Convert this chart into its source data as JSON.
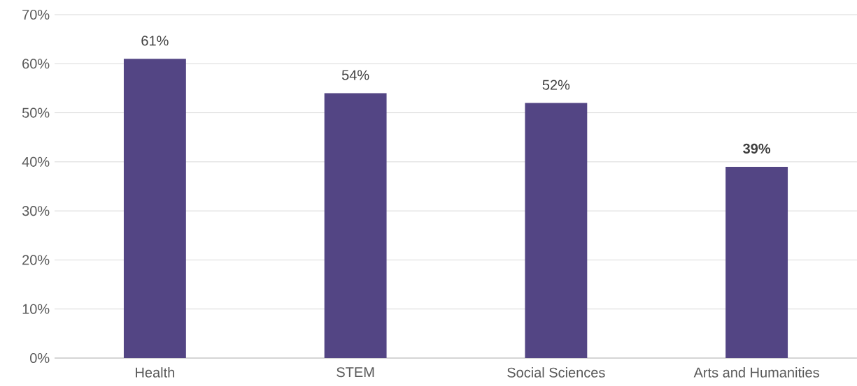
{
  "chart_data": {
    "type": "bar",
    "categories": [
      "Health",
      "STEM",
      "Social Sciences",
      "Arts and Humanities"
    ],
    "values": [
      61,
      54,
      52,
      39
    ],
    "value_labels": [
      "61%",
      "54%",
      "52%",
      "**39%**"
    ],
    "color": "#534584",
    "ylim": [
      0,
      70
    ],
    "yticks": [
      {
        "value": 0,
        "label": "0%"
      },
      {
        "value": 10,
        "label": "10%"
      },
      {
        "value": 20,
        "label": "20%"
      },
      {
        "value": 30,
        "label": "30%"
      },
      {
        "value": 40,
        "label": "40%"
      },
      {
        "value": 50,
        "label": "50%"
      },
      {
        "value": 60,
        "label": "60%"
      },
      {
        "value": 70,
        "label": "70%"
      }
    ],
    "grid": "y"
  }
}
